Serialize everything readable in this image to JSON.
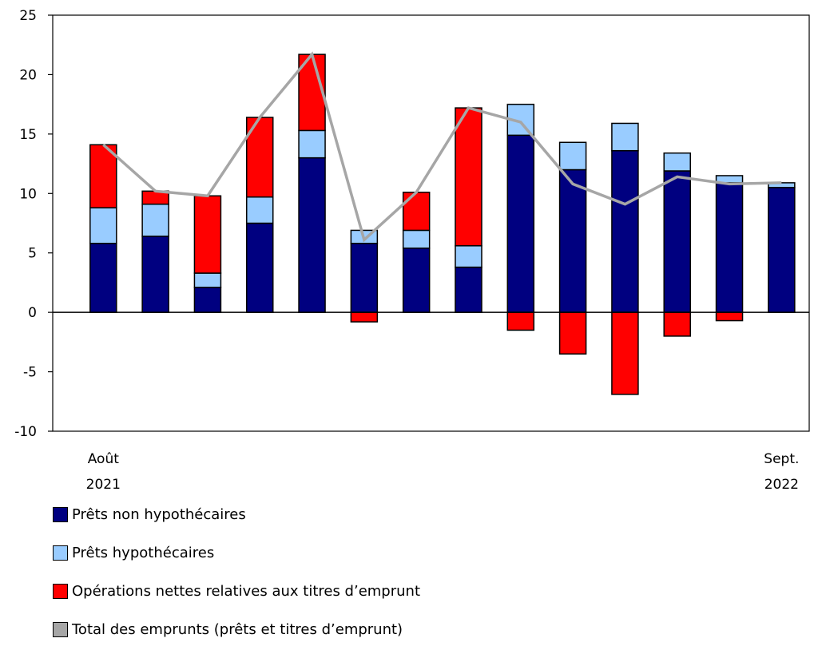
{
  "chart_data": {
    "type": "bar",
    "stacked": true,
    "categories": [
      "Août 2021",
      "",
      "",
      "",
      "",
      "",
      "",
      "",
      "",
      "",
      "",
      "",
      "",
      "Sept. 2022"
    ],
    "x_tick_labels": [
      {
        "index": 0,
        "line1": "Août",
        "line2": "2021"
      },
      {
        "index": 13,
        "line1": "Sept.",
        "line2": "2022"
      }
    ],
    "ylim": [
      -10,
      25
    ],
    "yticks": [
      25,
      20,
      15,
      10,
      5,
      0,
      -5,
      -10
    ],
    "grid": false,
    "legend_position": "bottom",
    "series": [
      {
        "name": "Prêts non hypothécaires",
        "color": "#000080",
        "values": [
          5.8,
          6.4,
          2.1,
          7.5,
          13.0,
          5.8,
          5.4,
          3.8,
          14.9,
          12.0,
          13.6,
          11.9,
          10.9,
          10.5
        ]
      },
      {
        "name": "Prêts hypothécaires",
        "color": "#99CCFF",
        "values": [
          3.0,
          2.7,
          1.2,
          2.2,
          2.3,
          1.1,
          1.5,
          1.8,
          2.6,
          2.3,
          2.3,
          1.5,
          0.6,
          0.4
        ]
      },
      {
        "name": "Opérations nettes relatives aux titres d’emprunt",
        "color": "#FF0000",
        "values": [
          5.3,
          1.1,
          6.5,
          6.7,
          6.4,
          -0.8,
          3.2,
          11.6,
          -1.5,
          -3.5,
          -6.9,
          -2.0,
          -0.7,
          0.0
        ]
      },
      {
        "name": "Total des emprunts (prêts et titres d’emprunt)",
        "color": "#A6A6A6",
        "type": "line",
        "values": [
          14.1,
          10.2,
          9.8,
          16.4,
          21.7,
          6.1,
          10.1,
          17.2,
          16.0,
          10.8,
          9.1,
          11.4,
          10.8,
          10.9
        ]
      }
    ]
  }
}
